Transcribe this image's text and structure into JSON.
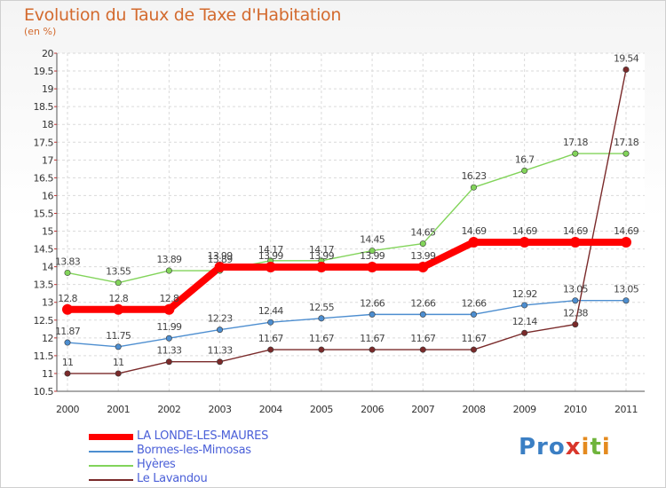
{
  "title": "Evolution du Taux de Taxe d'Habitation",
  "unit": "(en %)",
  "logo": {
    "p1": "Pro",
    "p2": "x",
    "p3": "i",
    "p4": "t",
    "p5": "i"
  },
  "chart_data": {
    "type": "line",
    "title": "Evolution du Taux de Taxe d'Habitation",
    "ylabel": "(en %)",
    "ylim": [
      10.5,
      20
    ],
    "yticks": [
      "10.5",
      "11",
      "11.5",
      "12",
      "12.5",
      "13",
      "13.5",
      "14",
      "14.5",
      "15",
      "15.5",
      "16",
      "16.5",
      "17",
      "17.5",
      "18",
      "18.5",
      "19",
      "19.5",
      "20"
    ],
    "categories": [
      "2000",
      "2001",
      "2002",
      "2003",
      "2004",
      "2005",
      "2006",
      "2007",
      "2008",
      "2009",
      "2010",
      "2011"
    ],
    "series": [
      {
        "name": "LA LONDE-LES-MAURES",
        "color": "#ff0000",
        "thick": true,
        "values": [
          12.8,
          12.8,
          12.8,
          13.99,
          13.99,
          13.99,
          13.99,
          13.99,
          14.69,
          14.69,
          14.69,
          14.69
        ],
        "labels": [
          "12.8",
          "12.8",
          "12.8",
          "13.99",
          "13.99",
          "13.99",
          "13.99",
          "13.99",
          "14.69",
          "14.69",
          "14.69",
          "14.69"
        ]
      },
      {
        "name": "Bormes-les-Mimosas",
        "color": "#4d8ed0",
        "values": [
          11.87,
          11.75,
          11.99,
          12.23,
          12.44,
          12.55,
          12.66,
          12.66,
          12.66,
          12.92,
          13.05,
          13.05
        ],
        "labels": [
          "11.87",
          "11.75",
          "11.99",
          "12.23",
          "12.44",
          "12.55",
          "12.66",
          "12.66",
          "12.66",
          "12.92",
          "13.05",
          "13.05"
        ]
      },
      {
        "name": "Hyères",
        "color": "#82d45a",
        "values": [
          13.83,
          13.55,
          13.89,
          13.89,
          14.17,
          14.17,
          14.45,
          14.65,
          16.23,
          16.7,
          17.18,
          17.18
        ],
        "labels": [
          "13.83",
          "13.55",
          "13.89",
          "13.89",
          "14.17",
          "14.17",
          "14.45",
          "14.65",
          "16.23",
          "16.7",
          "17.18",
          "17.18"
        ]
      },
      {
        "name": "Le Lavandou",
        "color": "#7a2a2a",
        "values": [
          11,
          11,
          11.33,
          11.33,
          11.67,
          11.67,
          11.67,
          11.67,
          11.67,
          12.14,
          12.38,
          19.54
        ],
        "labels": [
          "11",
          "11",
          "11.33",
          "11.33",
          "11.67",
          "11.67",
          "11.67",
          "11.67",
          "11.67",
          "12.14",
          "12.38",
          "19.54"
        ]
      }
    ]
  }
}
